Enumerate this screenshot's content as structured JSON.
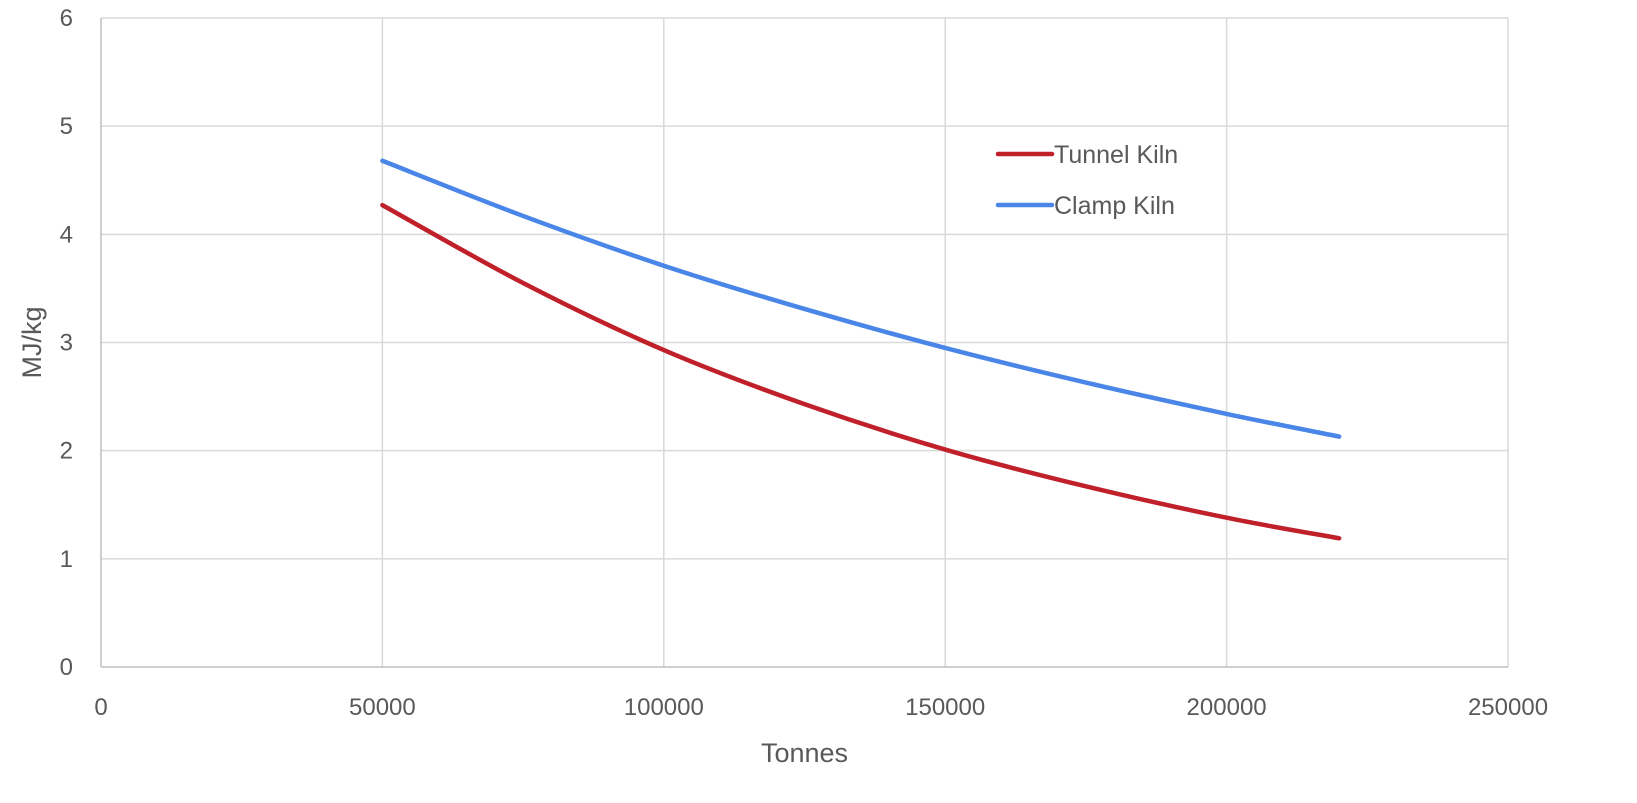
{
  "chart_data": {
    "type": "line",
    "title": "",
    "xlabel": "Tonnes",
    "ylabel": "MJ/kg",
    "xlim": [
      0,
      250000
    ],
    "ylim": [
      0,
      6
    ],
    "x_ticks": [
      0,
      50000,
      100000,
      150000,
      200000,
      250000
    ],
    "x_tick_labels": [
      "0",
      "50000",
      "100000",
      "150000",
      "200000",
      "250000"
    ],
    "y_ticks": [
      0,
      1,
      2,
      3,
      4,
      5,
      6
    ],
    "y_tick_labels": [
      "0",
      "1",
      "2",
      "3",
      "4",
      "5",
      "6"
    ],
    "grid": true,
    "legend_position": "top-right",
    "series": [
      {
        "name": "Tunnel Kiln",
        "color": "#c0202a",
        "x": [
          50000,
          75000,
          100000,
          125000,
          150000,
          175000,
          200000,
          220000
        ],
        "y": [
          4.27,
          3.55,
          2.93,
          2.43,
          2.01,
          1.67,
          1.38,
          1.19
        ]
      },
      {
        "name": "Clamp Kiln",
        "color": "#4a86e8",
        "x": [
          50000,
          75000,
          100000,
          125000,
          150000,
          175000,
          200000,
          220000
        ],
        "y": [
          4.68,
          4.17,
          3.71,
          3.31,
          2.95,
          2.63,
          2.34,
          2.13
        ]
      }
    ]
  }
}
